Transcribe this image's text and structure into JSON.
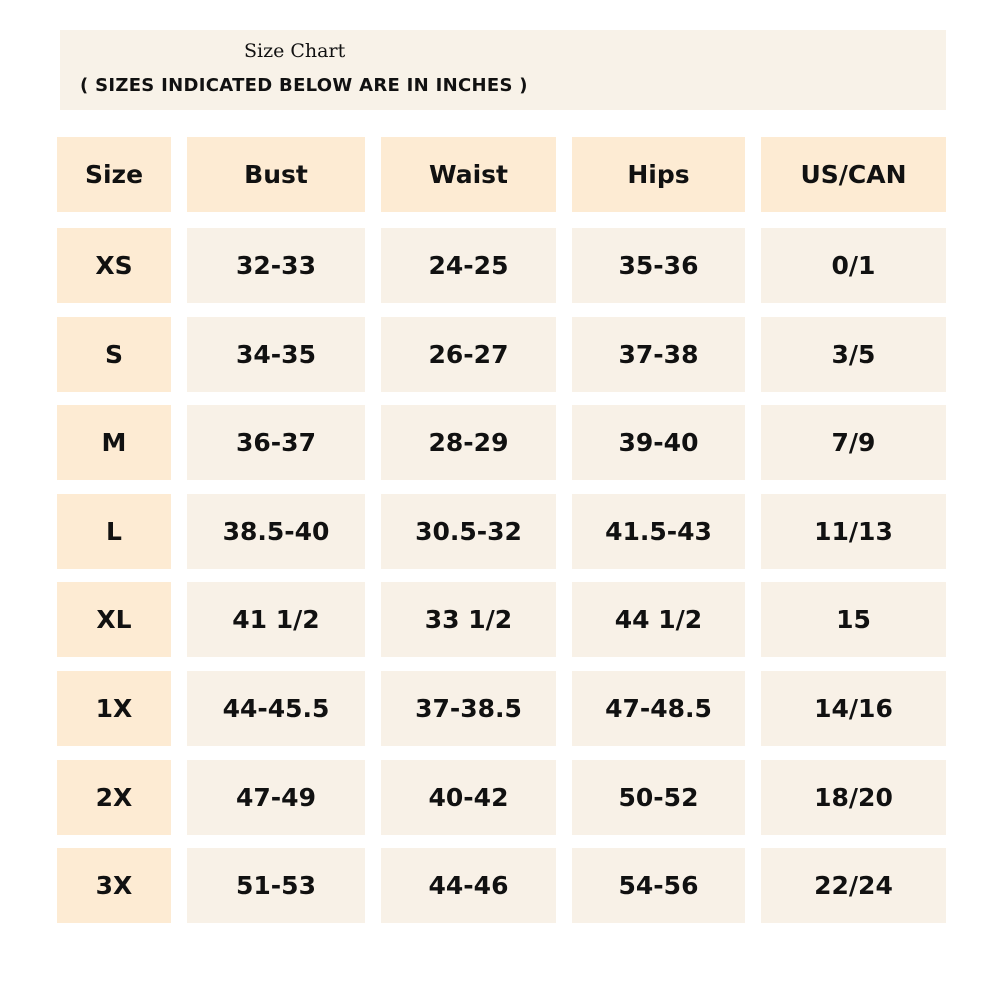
{
  "title": "Size Chart",
  "subtitle": "( SIZES INDICATED BELOW ARE IN INCHES )",
  "colors": {
    "header_cell": "#fdebd3",
    "data_cell": "#f8f1e7",
    "banner": "#f8f2e8",
    "text": "#111111"
  },
  "chart_data": {
    "type": "table",
    "columns": [
      "Size",
      "Bust",
      "Waist",
      "Hips",
      "US/CAN"
    ],
    "rows": [
      [
        "XS",
        "32-33",
        "24-25",
        "35-36",
        "0/1"
      ],
      [
        "S",
        "34-35",
        "26-27",
        "37-38",
        "3/5"
      ],
      [
        "M",
        "36-37",
        "28-29",
        "39-40",
        "7/9"
      ],
      [
        "L",
        "38.5-40",
        "30.5-32",
        "41.5-43",
        "11/13"
      ],
      [
        "XL",
        "41 1/2",
        "33 1/2",
        "44 1/2",
        "15"
      ],
      [
        "1X",
        "44-45.5",
        "37-38.5",
        "47-48.5",
        "14/16"
      ],
      [
        "2X",
        "47-49",
        "40-42",
        "50-52",
        "18/20"
      ],
      [
        "3X",
        "51-53",
        "44-46",
        "54-56",
        "22/24"
      ]
    ]
  }
}
